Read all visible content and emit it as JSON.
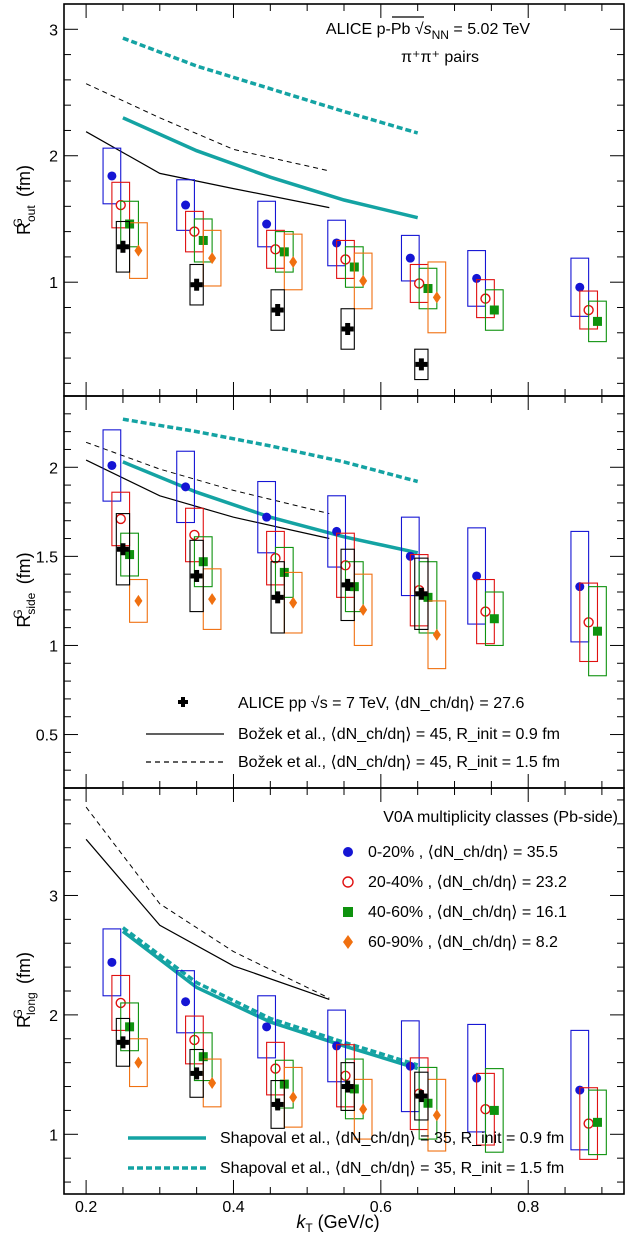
{
  "title": {
    "prefix": "ALICE p-Pb",
    "sqrt": "s",
    "sub": "NN",
    "suffix": "= 5.02 TeV"
  },
  "pairs": "π⁺π⁺ pairs",
  "x_axis": {
    "main": "k",
    "sub": "T",
    "unit": "(GeV/c)",
    "ticks": [
      "0.2",
      "0.4",
      "0.6",
      "0.8"
    ]
  },
  "colors": {
    "c0": "#1515d4",
    "c1": "#e01010",
    "c2": "#0e920e",
    "c3": "#f07010",
    "pp": "#000000",
    "shapoval": "#14a3a3",
    "bozek": "#000000"
  },
  "legend_exp": {
    "pp_label": "ALICE pp √s = 7 TeV, ⟨dN_ch/dη⟩ = 27.6",
    "bozek1": "Božek et al., ⟨dN_ch/dη⟩ = 45, R_init = 0.9 fm",
    "bozek2": "Božek et al., ⟨dN_ch/dη⟩ = 45, R_init = 1.5 fm"
  },
  "legend_mult": {
    "heading": "V0A multiplicity classes (Pb-side)",
    "items": [
      "0-20% , ⟨dN_ch/dη⟩ = 35.5",
      "20-40% , ⟨dN_ch/dη⟩ = 23.2",
      "40-60% , ⟨dN_ch/dη⟩ = 16.1",
      "60-90% , ⟨dN_ch/dη⟩ = 8.2"
    ]
  },
  "legend_shapoval": {
    "s1": "Shapoval et al., ⟨dN_ch/dη⟩ = 35, R_init = 0.9 fm",
    "s2": "Shapoval et al., ⟨dN_ch/dη⟩ = 35, R_init = 1.5 fm"
  },
  "chart_data": [
    {
      "type": "scatter",
      "panel": "out",
      "ylabel": "R^G_out (fm)",
      "ylim": [
        0.1,
        3.2
      ],
      "xlim": [
        0.17,
        0.93
      ],
      "yticks": [
        "1",
        "2",
        "3"
      ],
      "x": [
        0.235,
        0.335,
        0.445,
        0.54,
        0.64,
        0.73,
        0.87
      ],
      "series": [
        {
          "name": "0-20%",
          "values": [
            1.84,
            1.61,
            1.46,
            1.31,
            1.19,
            1.03,
            0.96
          ],
          "sys": [
            0.22,
            0.2,
            0.18,
            0.18,
            0.18,
            0.22,
            0.23
          ]
        },
        {
          "name": "20-40%",
          "values": [
            1.61,
            1.4,
            1.26,
            1.18,
            0.99,
            0.87,
            0.78
          ],
          "sys": [
            0.18,
            0.16,
            0.15,
            0.15,
            0.15,
            0.15,
            0.15
          ]
        },
        {
          "name": "40-60%",
          "values": [
            1.46,
            1.33,
            1.24,
            1.12,
            0.95,
            0.78,
            0.69
          ],
          "sys": [
            0.18,
            0.17,
            0.16,
            0.16,
            0.16,
            0.16,
            0.16
          ]
        },
        {
          "name": "60-90%",
          "values": [
            1.25,
            1.19,
            1.16,
            1.01,
            0.88,
            null,
            null
          ],
          "sys": [
            0.22,
            0.22,
            0.22,
            0.22,
            0.28,
            null,
            null
          ]
        },
        {
          "name": "ALICE pp",
          "values": [
            1.28,
            0.98,
            0.78,
            0.63,
            0.35,
            null,
            null
          ],
          "sys": [
            0.2,
            0.16,
            0.16,
            0.16,
            0.12,
            null,
            null
          ]
        }
      ],
      "models": [
        {
          "name": "Shapoval 0.9",
          "x": [
            0.25,
            0.35,
            0.45,
            0.55,
            0.65
          ],
          "y": [
            2.3,
            2.04,
            1.83,
            1.65,
            1.51
          ]
        },
        {
          "name": "Shapoval 1.5",
          "x": [
            0.25,
            0.35,
            0.45,
            0.55,
            0.65
          ],
          "y": [
            2.93,
            2.71,
            2.53,
            2.35,
            2.18
          ]
        },
        {
          "name": "Bozek 0.9",
          "x": [
            0.2,
            0.3,
            0.4,
            0.53
          ],
          "y": [
            2.19,
            1.86,
            1.74,
            1.59
          ]
        },
        {
          "name": "Bozek 1.5",
          "x": [
            0.2,
            0.3,
            0.4,
            0.53
          ],
          "y": [
            2.57,
            2.3,
            2.05,
            1.88
          ]
        }
      ]
    },
    {
      "type": "scatter",
      "panel": "side",
      "ylabel": "R^G_side (fm)",
      "ylim": [
        0.2,
        2.4
      ],
      "xlim": [
        0.17,
        0.93
      ],
      "yticks": [
        "0.5",
        "1",
        "1.5",
        "2"
      ],
      "x": [
        0.235,
        0.335,
        0.445,
        0.54,
        0.64,
        0.73,
        0.87
      ],
      "series": [
        {
          "name": "0-20%",
          "values": [
            2.01,
            1.89,
            1.72,
            1.64,
            1.5,
            1.39,
            1.33
          ],
          "sys": [
            0.2,
            0.2,
            0.2,
            0.2,
            0.22,
            0.27,
            0.31
          ]
        },
        {
          "name": "20-40%",
          "values": [
            1.71,
            1.62,
            1.49,
            1.45,
            1.31,
            1.19,
            1.13
          ],
          "sys": [
            0.15,
            0.15,
            0.15,
            0.18,
            0.2,
            0.18,
            0.22
          ]
        },
        {
          "name": "40-60%",
          "values": [
            1.51,
            1.47,
            1.41,
            1.33,
            1.27,
            1.15,
            1.08
          ],
          "sys": [
            0.12,
            0.14,
            0.14,
            0.14,
            0.2,
            0.15,
            0.25
          ]
        },
        {
          "name": "60-90%",
          "values": [
            1.25,
            1.26,
            1.24,
            1.2,
            1.06,
            null,
            null
          ],
          "sys": [
            0.12,
            0.17,
            0.17,
            0.2,
            0.19,
            null,
            null
          ]
        },
        {
          "name": "ALICE pp",
          "values": [
            1.54,
            1.39,
            1.27,
            1.34,
            1.29,
            null,
            null
          ],
          "sys": [
            0.2,
            0.2,
            0.2,
            0.2,
            0.2,
            null,
            null
          ]
        }
      ],
      "models": [
        {
          "name": "Shapoval 0.9",
          "x": [
            0.25,
            0.35,
            0.45,
            0.55,
            0.65
          ],
          "y": [
            2.03,
            1.86,
            1.72,
            1.61,
            1.52
          ]
        },
        {
          "name": "Shapoval 1.5",
          "x": [
            0.25,
            0.35,
            0.45,
            0.55,
            0.65
          ],
          "y": [
            2.27,
            2.2,
            2.12,
            2.03,
            1.92
          ]
        },
        {
          "name": "Bozek 0.9",
          "x": [
            0.2,
            0.3,
            0.4,
            0.53
          ],
          "y": [
            2.04,
            1.84,
            1.72,
            1.6
          ]
        },
        {
          "name": "Bozek 1.5",
          "x": [
            0.2,
            0.3,
            0.4,
            0.53
          ],
          "y": [
            2.14,
            1.99,
            1.87,
            1.74
          ]
        }
      ]
    },
    {
      "type": "scatter",
      "panel": "long",
      "ylabel": "R^G_long (fm)",
      "ylim": [
        0.5,
        3.9
      ],
      "xlim": [
        0.17,
        0.93
      ],
      "yticks": [
        "1",
        "2",
        "3"
      ],
      "x": [
        0.235,
        0.335,
        0.445,
        0.54,
        0.64,
        0.73,
        0.87
      ],
      "series": [
        {
          "name": "0-20%",
          "values": [
            2.44,
            2.11,
            1.9,
            1.74,
            1.57,
            1.47,
            1.37
          ],
          "sys": [
            0.28,
            0.26,
            0.26,
            0.3,
            0.38,
            0.45,
            0.5
          ]
        },
        {
          "name": "20-40%",
          "values": [
            2.1,
            1.79,
            1.55,
            1.49,
            1.34,
            1.21,
            1.09
          ],
          "sys": [
            0.23,
            0.2,
            0.22,
            0.26,
            0.3,
            0.3,
            0.3
          ]
        },
        {
          "name": "40-60%",
          "values": [
            1.9,
            1.65,
            1.42,
            1.38,
            1.26,
            1.2,
            1.1
          ],
          "sys": [
            0.2,
            0.2,
            0.2,
            0.25,
            0.3,
            0.35,
            0.27
          ]
        },
        {
          "name": "60-90%",
          "values": [
            1.6,
            1.43,
            1.31,
            1.21,
            1.16,
            null,
            null
          ],
          "sys": [
            0.2,
            0.2,
            0.25,
            0.25,
            0.3,
            null,
            null
          ]
        },
        {
          "name": "ALICE pp",
          "values": [
            1.77,
            1.51,
            1.25,
            1.4,
            1.32,
            null,
            null
          ],
          "sys": [
            0.2,
            0.2,
            0.2,
            0.2,
            0.2,
            null,
            null
          ]
        }
      ],
      "models": [
        {
          "name": "Shapoval 0.9",
          "x": [
            0.25,
            0.35,
            0.45,
            0.55,
            0.65
          ],
          "y": [
            2.7,
            2.23,
            1.94,
            1.74,
            1.55
          ]
        },
        {
          "name": "Shapoval 1.5",
          "x": [
            0.25,
            0.35,
            0.45,
            0.55,
            0.65
          ],
          "y": [
            2.73,
            2.27,
            1.97,
            1.77,
            1.58
          ]
        },
        {
          "name": "Bozek 0.9",
          "x": [
            0.2,
            0.3,
            0.4,
            0.53
          ],
          "y": [
            3.47,
            2.75,
            2.41,
            2.13
          ]
        },
        {
          "name": "Bozek 1.5",
          "x": [
            0.2,
            0.3,
            0.4,
            0.53
          ],
          "y": [
            3.74,
            2.93,
            2.53,
            2.14
          ]
        }
      ]
    }
  ]
}
